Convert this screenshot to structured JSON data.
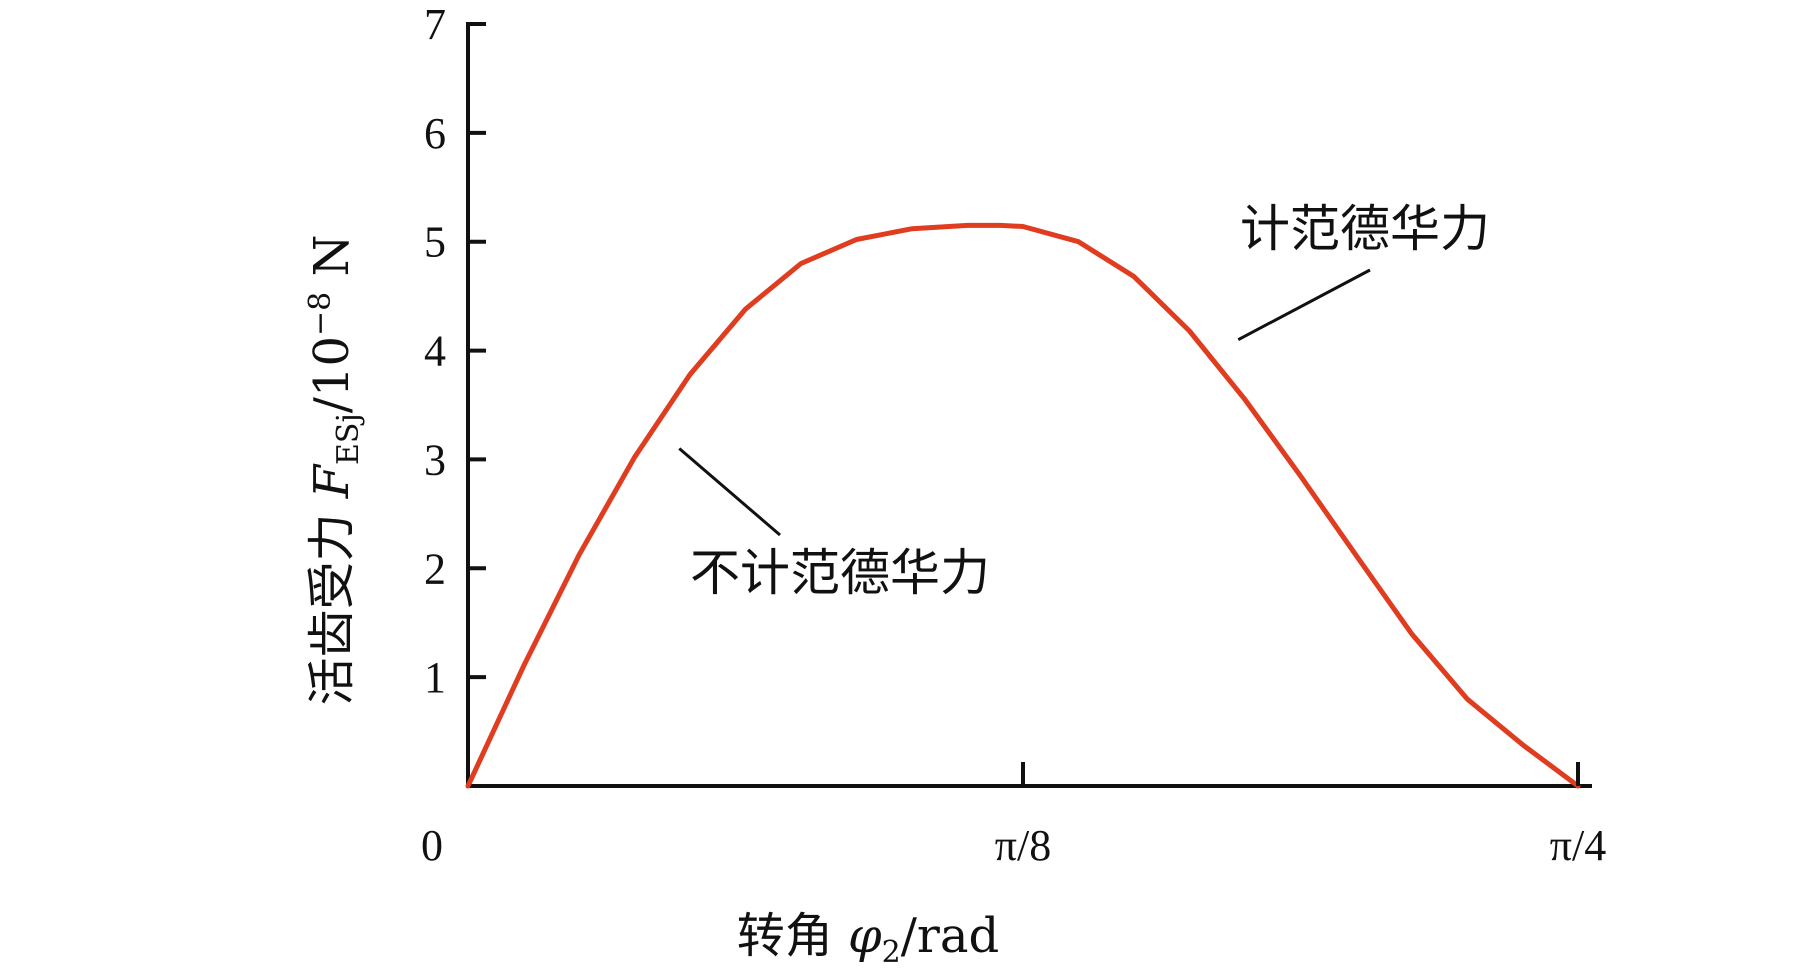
{
  "chart_data": {
    "type": "line",
    "xlabel_parts": {
      "prefix": "转角 ",
      "symbol": "φ",
      "subscript": "2",
      "suffix": "/rad"
    },
    "ylabel_parts": {
      "prefix": "活齿受力 ",
      "symbol": "F",
      "subscript": "ESj",
      "mid": "/10",
      "superscript": "−8",
      "suffix": " N"
    },
    "x_ticks": [
      {
        "value": 0.0,
        "label": "0"
      },
      {
        "value": 0.392699,
        "label": "π/8"
      },
      {
        "value": 0.785398,
        "label": "π/4"
      }
    ],
    "y_ticks": [
      {
        "value": 1,
        "label": "1"
      },
      {
        "value": 2,
        "label": "2"
      },
      {
        "value": 3,
        "label": "3"
      },
      {
        "value": 4,
        "label": "4"
      },
      {
        "value": 5,
        "label": "5"
      },
      {
        "value": 6,
        "label": "6"
      },
      {
        "value": 7,
        "label": "7"
      }
    ],
    "xlim": [
      0,
      0.785398
    ],
    "ylim": [
      0,
      7
    ],
    "grid": false,
    "series": [
      {
        "color": "#e03c1f",
        "x": [
          0.0,
          0.0393,
          0.0785,
          0.1178,
          0.1571,
          0.1963,
          0.2356,
          0.2749,
          0.3142,
          0.3534,
          0.3768,
          0.3927,
          0.432,
          0.4712,
          0.5105,
          0.5498,
          0.589,
          0.6283,
          0.6676,
          0.7069,
          0.7461,
          0.7854
        ],
        "y": [
          0.0,
          1.1,
          2.12,
          3.02,
          3.78,
          4.38,
          4.8,
          5.02,
          5.12,
          5.15,
          5.15,
          5.14,
          5.0,
          4.68,
          4.18,
          3.55,
          2.85,
          2.12,
          1.4,
          0.8,
          0.38,
          0.0
        ]
      }
    ],
    "annotations": [
      {
        "text": "计范德华力",
        "point": [
          0.545,
          4.1
        ]
      },
      {
        "text": "不计范德华力",
        "point": [
          0.1495,
          3.1
        ]
      }
    ]
  }
}
